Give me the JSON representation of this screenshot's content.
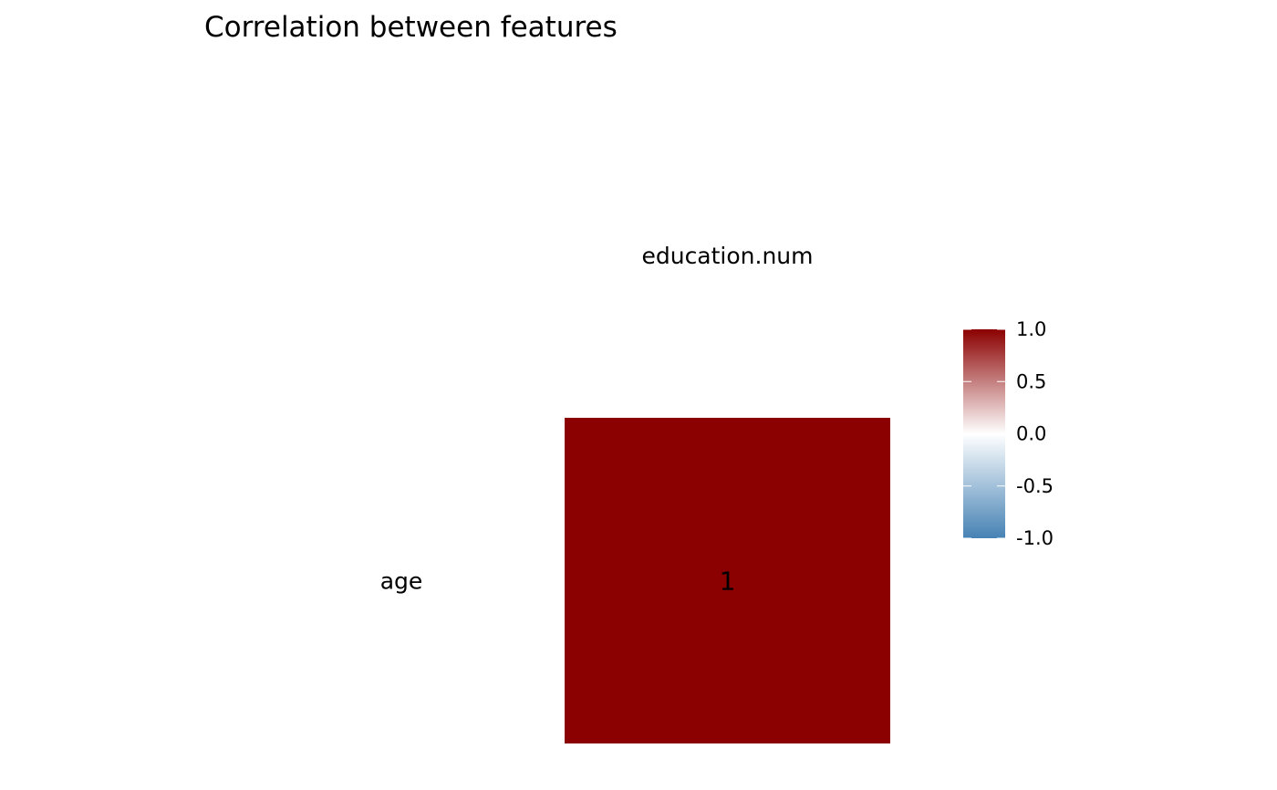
{
  "chart_data": {
    "type": "heatmap",
    "title": "Correlation between features",
    "x_categories": [
      "education.num"
    ],
    "y_categories": [
      "age"
    ],
    "cells": [
      {
        "x": "education.num",
        "y": "age",
        "value": 1,
        "label": "1"
      }
    ],
    "color_scale": {
      "min": -1.0,
      "mid": 0.0,
      "max": 1.0,
      "low_color": "#4682b4",
      "mid_color": "#ffffff",
      "high_color": "#8b0000",
      "ticks": [
        1.0,
        0.5,
        0.0,
        -0.5,
        -1.0
      ],
      "tick_labels": [
        "1.0",
        "0.5",
        "0.0",
        "-0.5",
        "-1.0"
      ]
    },
    "xlabel": "",
    "ylabel": "",
    "grid": false,
    "legend_position": "right"
  }
}
